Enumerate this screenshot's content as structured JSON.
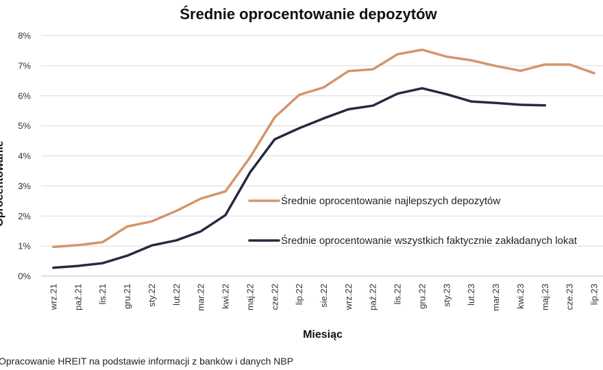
{
  "chart_data": {
    "type": "line",
    "title": "Średnie oprocentowanie depozytów",
    "xlabel": "Miesiąc",
    "ylabel": "Oprocentowanie",
    "ylim": [
      0,
      8
    ],
    "yticks": [
      "0%",
      "1%",
      "2%",
      "3%",
      "4%",
      "5%",
      "6%",
      "7%",
      "8%"
    ],
    "grid": "horizontal",
    "categories": [
      "wrz.21",
      "paź.21",
      "lis.21",
      "gru.21",
      "sty.22",
      "lut.22",
      "mar.22",
      "kwi.22",
      "maj.22",
      "cze.22",
      "lip.22",
      "sie.22",
      "wrz.22",
      "paź.22",
      "lis.22",
      "gru.22",
      "sty.23",
      "lut.23",
      "mar.23",
      "kwi.23",
      "maj.23",
      "cze.23",
      "lip.23"
    ],
    "series": [
      {
        "name": "Średnie oprocentowanie najlepszych depozytów",
        "color": "#d4956a",
        "values": [
          0.97,
          1.03,
          1.13,
          1.65,
          1.82,
          2.17,
          2.58,
          2.82,
          3.95,
          5.28,
          6.03,
          6.28,
          6.82,
          6.88,
          7.38,
          7.53,
          7.3,
          7.18,
          6.99,
          6.83,
          7.04,
          7.04,
          6.75
        ]
      },
      {
        "name": "Średnie oprocentowanie wszystkich faktycznie zakładanych lokat",
        "color": "#252a3f",
        "values": [
          0.28,
          0.34,
          0.43,
          0.68,
          1.02,
          1.19,
          1.49,
          2.03,
          3.45,
          4.55,
          4.92,
          5.25,
          5.55,
          5.67,
          6.07,
          6.25,
          6.05,
          5.81,
          5.76,
          5.7,
          5.68,
          null,
          null
        ]
      }
    ],
    "legend_position": "center-right"
  },
  "source": "Opracowanie HREIT na podstawie informacji z banków i danych NBP"
}
